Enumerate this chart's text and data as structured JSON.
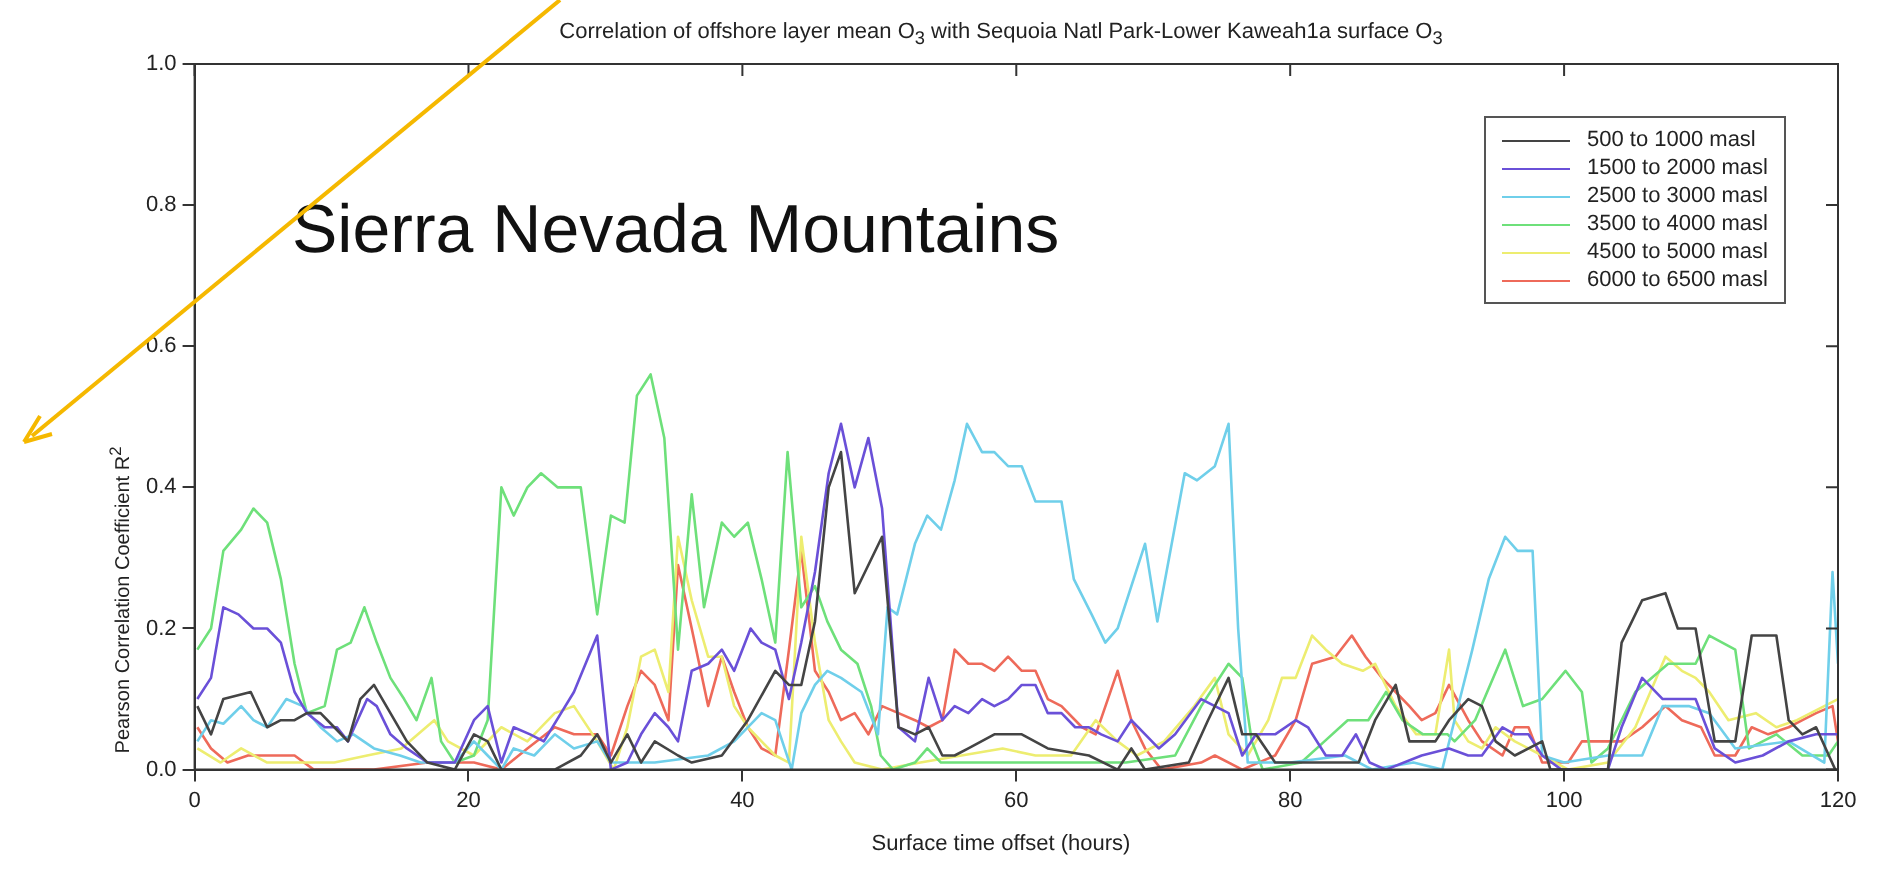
{
  "chart_data": {
    "type": "line",
    "title": "Correlation of offshore layer mean O$_{3}$ with Sequoia Natl Park-Lower Kaweah1a surface O$_{3}$",
    "xlabel": "Surface time offset (hours)",
    "ylabel": "Pearson Correlation Coefficient R$^{2}$",
    "annotations": [
      "Sierra Nevada Mountains"
    ],
    "xlim": [
      0,
      120
    ],
    "xticks": [
      0,
      20,
      40,
      60,
      80,
      100,
      120
    ],
    "ylim": [
      0,
      1
    ],
    "yticks": [
      {
        "value": 0,
        "label": "0.0"
      },
      {
        "value": 0.2,
        "label": "0.2"
      },
      {
        "value": 0.4,
        "label": "0.4"
      },
      {
        "value": 0.6,
        "label": "0.6"
      },
      {
        "value": 0.8,
        "label": "0.8"
      },
      {
        "value": 1,
        "label": "1.0"
      }
    ],
    "legend": "top right",
    "series": [
      {
        "name": "500 to 1000 masl",
        "color": "#444444",
        "x": [
          0.2,
          1.2,
          2.1,
          4.1,
          5.3,
          6.3,
          7.3,
          8.2,
          9.2,
          10.2,
          11.2,
          12.1,
          13.1,
          14.3,
          15.5,
          17,
          19,
          20.4,
          21.4,
          22.4,
          26.3,
          28.2,
          29.4,
          30.4,
          31.6,
          32.6,
          33.6,
          35.3,
          36.3,
          38.5,
          40.4,
          42.4,
          43.4,
          44.3,
          45.3,
          46.3,
          47.2,
          48.2,
          50.2,
          51.4,
          52.6,
          53.6,
          54.6,
          55.5,
          56.5,
          58.4,
          60.4,
          62.3,
          65.3,
          67.4,
          68.4,
          69.4,
          72.6,
          74,
          75.5,
          76.5,
          77.5,
          78.9,
          85,
          86.2,
          87.7,
          88.7,
          90.6,
          91.6,
          93,
          94,
          95,
          96.4,
          98.4,
          99,
          103.2,
          104.2,
          105.7,
          107.4,
          108.3,
          109.6,
          111,
          112.5,
          113.7,
          115.5,
          116.4,
          117.4,
          118.4,
          119.8
        ],
        "values": [
          0.09,
          0.05,
          0.1,
          0.11,
          0.06,
          0.07,
          0.07,
          0.08,
          0.08,
          0.06,
          0.04,
          0.1,
          0.12,
          0.08,
          0.04,
          0.01,
          0,
          0.05,
          0.04,
          0,
          0,
          0.02,
          0.05,
          0.01,
          0.05,
          0.01,
          0.04,
          0.02,
          0.01,
          0.02,
          0.07,
          0.14,
          0.12,
          0.12,
          0.21,
          0.4,
          0.45,
          0.25,
          0.33,
          0.06,
          0.05,
          0.06,
          0.02,
          0.02,
          0.03,
          0.05,
          0.05,
          0.03,
          0.02,
          0,
          0.03,
          0,
          0.01,
          0.07,
          0.13,
          0.05,
          0.05,
          0.01,
          0.01,
          0.07,
          0.12,
          0.04,
          0.04,
          0.07,
          0.1,
          0.09,
          0.04,
          0.02,
          0.04,
          0,
          0,
          0.18,
          0.24,
          0.25,
          0.2,
          0.2,
          0.04,
          0.04,
          0.19,
          0.19,
          0.07,
          0.05,
          0.06,
          0
        ]
      },
      {
        "name": "1500 to 2000 masl",
        "color": "#6a50d8",
        "x": [
          0.2,
          1.2,
          2.1,
          3.2,
          4.3,
          5.3,
          6.3,
          7.3,
          8.2,
          9.5,
          10.4,
          11.2,
          12.6,
          13.3,
          14.3,
          15.5,
          17,
          19,
          20.4,
          21.4,
          22.4,
          23.3,
          24.5,
          25.5,
          27.7,
          29.4,
          30.4,
          31.6,
          32.6,
          33.6,
          34.6,
          35.3,
          36.3,
          37.5,
          38.5,
          39.4,
          40.6,
          41.4,
          42.4,
          43.4,
          44.3,
          45.3,
          46.3,
          47.2,
          48.2,
          49.2,
          50.2,
          51.4,
          52.6,
          53.6,
          54.6,
          55.5,
          56.5,
          57.5,
          58.4,
          59.4,
          60.4,
          61.4,
          62.3,
          63.3,
          64.3,
          65.3,
          66.2,
          67.4,
          68.4,
          70.4,
          71.6,
          73.5,
          74.5,
          75.5,
          76.5,
          77.5,
          78.9,
          80.4,
          81.3,
          82.6,
          83.8,
          84.8,
          85.8,
          87,
          89.6,
          91.6,
          93,
          94,
          95.5,
          96.4,
          97.4,
          98.4,
          99.8,
          103.2,
          104.2,
          105.7,
          107.2,
          108.6,
          109.6,
          111,
          112.5,
          114.5,
          116.4,
          118.4,
          120
        ],
        "values": [
          0.1,
          0.13,
          0.23,
          0.22,
          0.2,
          0.2,
          0.18,
          0.11,
          0.08,
          0.06,
          0.06,
          0.04,
          0.1,
          0.09,
          0.05,
          0.03,
          0.01,
          0.01,
          0.07,
          0.09,
          0.01,
          0.06,
          0.05,
          0.04,
          0.11,
          0.19,
          0,
          0.01,
          0.05,
          0.08,
          0.06,
          0.04,
          0.14,
          0.15,
          0.17,
          0.14,
          0.2,
          0.18,
          0.17,
          0.1,
          0.18,
          0.28,
          0.42,
          0.49,
          0.4,
          0.47,
          0.37,
          0.06,
          0.04,
          0.13,
          0.07,
          0.09,
          0.08,
          0.1,
          0.09,
          0.1,
          0.12,
          0.12,
          0.08,
          0.08,
          0.06,
          0.06,
          0.05,
          0.04,
          0.07,
          0.03,
          0.05,
          0.1,
          0.09,
          0.08,
          0.02,
          0.05,
          0.05,
          0.07,
          0.06,
          0.02,
          0.02,
          0.05,
          0.01,
          0,
          0.02,
          0.03,
          0.02,
          0.02,
          0.06,
          0.05,
          0.05,
          0.02,
          0,
          0,
          0.06,
          0.13,
          0.1,
          0.1,
          0.1,
          0.03,
          0.01,
          0.02,
          0.04,
          0.05,
          0.05
        ]
      },
      {
        "name": "2500 to 3000 masl",
        "color": "#6fcfea",
        "x": [
          0.2,
          1.2,
          2.1,
          3.4,
          4.3,
          5.3,
          6.7,
          7.9,
          9.2,
          10.4,
          11.6,
          13.1,
          15,
          16.5,
          19,
          20.4,
          21.4,
          22.4,
          23.3,
          24.8,
          26.3,
          27.7,
          29.4,
          30.4,
          33.6,
          37.5,
          39.4,
          41.4,
          42.4,
          43.6,
          44.3,
          45.3,
          46.2,
          47.2,
          48.7,
          49.9,
          50.6,
          51.3,
          52.6,
          53.5,
          54.5,
          55.5,
          56.4,
          57.5,
          58.4,
          59.4,
          60.4,
          61.4,
          63.3,
          64.2,
          65.5,
          66.5,
          67.4,
          69.4,
          70.3,
          72.3,
          73.2,
          74.5,
          75.5,
          76.2,
          76.9,
          80,
          84,
          86,
          89,
          91.1,
          92,
          93.3,
          94.5,
          95.7,
          96.6,
          97.7,
          98.4,
          100,
          103.2,
          105.7,
          107.2,
          109.1,
          110.6,
          112.5,
          116.4,
          119,
          119.6,
          120
        ],
        "values": [
          0.04,
          0.07,
          0.065,
          0.09,
          0.07,
          0.06,
          0.1,
          0.09,
          0.06,
          0.04,
          0.05,
          0.03,
          0.02,
          0.01,
          0.01,
          0.04,
          0.02,
          0,
          0.03,
          0.02,
          0.05,
          0.03,
          0.04,
          0.01,
          0.01,
          0.02,
          0.04,
          0.08,
          0.07,
          0,
          0.08,
          0.12,
          0.14,
          0.13,
          0.11,
          0.05,
          0.23,
          0.22,
          0.32,
          0.36,
          0.34,
          0.41,
          0.49,
          0.45,
          0.45,
          0.43,
          0.43,
          0.38,
          0.38,
          0.27,
          0.22,
          0.18,
          0.2,
          0.32,
          0.21,
          0.42,
          0.41,
          0.43,
          0.49,
          0.2,
          0.01,
          0.01,
          0.02,
          0,
          0.01,
          0,
          0.07,
          0.17,
          0.27,
          0.33,
          0.31,
          0.31,
          0.02,
          0.01,
          0.02,
          0.02,
          0.09,
          0.09,
          0.08,
          0.03,
          0.04,
          0.01,
          0.28,
          0.15
        ]
      },
      {
        "name": "3500 to 4000 masl",
        "color": "#6ee07a",
        "x": [
          0.2,
          1.2,
          2.1,
          3.4,
          4.3,
          5.3,
          6.3,
          7.3,
          8.2,
          9.5,
          10.4,
          11.4,
          12.4,
          13.3,
          14.3,
          15.3,
          16.2,
          17.3,
          18,
          19,
          20.4,
          21.4,
          22.4,
          23.3,
          24.3,
          25.3,
          26.5,
          28.2,
          29.4,
          30.4,
          31.4,
          32.3,
          33.3,
          34.3,
          35.3,
          36.3,
          37.2,
          38.5,
          39.4,
          40.4,
          41.4,
          42.4,
          43.3,
          44.3,
          45.3,
          46.2,
          47.2,
          48.4,
          49.4,
          50.1,
          51,
          52.6,
          53.5,
          54.5,
          57,
          60,
          64,
          68,
          71.6,
          73.5,
          75.5,
          76.5,
          77.2,
          78,
          80.8,
          82.5,
          84.2,
          85.7,
          87,
          88.2,
          89.7,
          91.5,
          92,
          93.5,
          95.7,
          97,
          98.4,
          100.1,
          101.3,
          102,
          103.2,
          105.2,
          107.6,
          109.6,
          110.6,
          112.5,
          113.5,
          115.5,
          117.4,
          119.3,
          120
        ],
        "values": [
          0.17,
          0.2,
          0.31,
          0.34,
          0.37,
          0.35,
          0.27,
          0.15,
          0.08,
          0.09,
          0.17,
          0.18,
          0.23,
          0.18,
          0.13,
          0.1,
          0.07,
          0.13,
          0.04,
          0.01,
          0.02,
          0.07,
          0.4,
          0.36,
          0.4,
          0.42,
          0.4,
          0.4,
          0.22,
          0.36,
          0.35,
          0.53,
          0.56,
          0.47,
          0.17,
          0.39,
          0.23,
          0.35,
          0.33,
          0.35,
          0.27,
          0.18,
          0.45,
          0.23,
          0.26,
          0.21,
          0.17,
          0.15,
          0.09,
          0.02,
          0,
          0.01,
          0.03,
          0.01,
          0.01,
          0.01,
          0.01,
          0.01,
          0.02,
          0.09,
          0.15,
          0.13,
          0.04,
          0,
          0.01,
          0.04,
          0.07,
          0.07,
          0.11,
          0.07,
          0.05,
          0.05,
          0.04,
          0.07,
          0.17,
          0.09,
          0.1,
          0.14,
          0.11,
          0.01,
          0.03,
          0.11,
          0.15,
          0.15,
          0.19,
          0.17,
          0.03,
          0.05,
          0.02,
          0.02,
          0.04
        ]
      },
      {
        "name": "4500 to 5000 masl",
        "color": "#eded70",
        "x": [
          0.2,
          1.9,
          3.4,
          5.3,
          7.3,
          10.2,
          12.6,
          15.1,
          17.5,
          18.5,
          20.4,
          22.4,
          24.3,
          26.3,
          27.7,
          29.4,
          30.6,
          31.6,
          32.6,
          33.6,
          34.6,
          35.3,
          36.3,
          37.5,
          38.5,
          39.4,
          40.4,
          41.4,
          42.4,
          43.4,
          44.3,
          45.3,
          46.3,
          47.2,
          48.2,
          50.2,
          53,
          56,
          59,
          61.4,
          64,
          65.8,
          67.4,
          68.8,
          70.8,
          73,
          74.5,
          75.5,
          76.9,
          78.4,
          79.4,
          80.4,
          81.6,
          82.6,
          83.8,
          85.3,
          86.2,
          87.7,
          89.2,
          90.6,
          91.6,
          92,
          93,
          94,
          95,
          96.4,
          98.4,
          100.3,
          103.2,
          105.2,
          107.4,
          108.6,
          109.6,
          110.6,
          112,
          114,
          115.5,
          117,
          119,
          120
        ],
        "values": [
          0.03,
          0.01,
          0.03,
          0.01,
          0.01,
          0.01,
          0.02,
          0.03,
          0.07,
          0.04,
          0.02,
          0.06,
          0.04,
          0.08,
          0.09,
          0.04,
          0,
          0.06,
          0.16,
          0.17,
          0.11,
          0.33,
          0.24,
          0.16,
          0.16,
          0.09,
          0.06,
          0.04,
          0.02,
          0.01,
          0.33,
          0.18,
          0.07,
          0.04,
          0.01,
          0,
          0.01,
          0.02,
          0.03,
          0.02,
          0.02,
          0.07,
          0.04,
          0.02,
          0.04,
          0.09,
          0.13,
          0.05,
          0.02,
          0.07,
          0.13,
          0.13,
          0.19,
          0.17,
          0.15,
          0.14,
          0.15,
          0.09,
          0.05,
          0.05,
          0.17,
          0.07,
          0.04,
          0.03,
          0.06,
          0.04,
          0.02,
          0,
          0.01,
          0.06,
          0.16,
          0.14,
          0.13,
          0.11,
          0.07,
          0.08,
          0.06,
          0.07,
          0.09,
          0.1
        ]
      },
      {
        "name": "6000 to 6500 masl",
        "color": "#ee6a5a",
        "x": [
          0.2,
          1.2,
          2.4,
          3.9,
          5.8,
          7.3,
          8.7,
          13.1,
          17,
          18.5,
          20.4,
          22.4,
          24.3,
          26.3,
          27.7,
          29.4,
          30.4,
          31.6,
          32.6,
          33.6,
          34.6,
          35.3,
          36.3,
          37.5,
          38.5,
          39.4,
          40.4,
          41.4,
          42.4,
          43.4,
          44.3,
          45.3,
          46.3,
          47.2,
          48.2,
          49.2,
          50.2,
          51.4,
          52.6,
          53.6,
          54.6,
          55.5,
          56.5,
          57.5,
          58.4,
          59.4,
          60.4,
          61.4,
          62.3,
          63.3,
          64.8,
          65.8,
          67.4,
          68.4,
          69.4,
          70.6,
          73.5,
          74.5,
          76.5,
          78.9,
          80.4,
          81.6,
          83.3,
          84.5,
          85.5,
          86.7,
          87.7,
          88.7,
          89.6,
          90.6,
          91.6,
          93,
          94,
          95.5,
          96.4,
          97.4,
          98.4,
          100.3,
          101.3,
          102.8,
          104.2,
          105.7,
          107.4,
          108.6,
          110,
          111,
          112.5,
          113.7,
          114.9,
          116.4,
          117.4,
          118.4,
          119.6,
          120
        ],
        "values": [
          0.06,
          0.03,
          0.01,
          0.02,
          0.02,
          0.02,
          0,
          0,
          0.01,
          0.01,
          0.01,
          0,
          0.03,
          0.06,
          0.05,
          0.05,
          0.02,
          0.09,
          0.14,
          0.12,
          0.07,
          0.29,
          0.2,
          0.09,
          0.16,
          0.11,
          0.06,
          0.03,
          0.02,
          0.17,
          0.31,
          0.14,
          0.11,
          0.07,
          0.08,
          0.05,
          0.09,
          0.08,
          0.07,
          0.06,
          0.07,
          0.17,
          0.15,
          0.15,
          0.14,
          0.16,
          0.14,
          0.14,
          0.1,
          0.09,
          0.06,
          0.05,
          0.14,
          0.07,
          0.03,
          0,
          0.01,
          0.02,
          0,
          0.02,
          0.07,
          0.15,
          0.16,
          0.19,
          0.16,
          0.13,
          0.11,
          0.09,
          0.07,
          0.08,
          0.12,
          0.07,
          0.04,
          0.02,
          0.06,
          0.06,
          0.01,
          0.01,
          0.04,
          0.04,
          0.04,
          0.06,
          0.09,
          0.07,
          0.06,
          0.02,
          0.02,
          0.06,
          0.05,
          0.06,
          0.07,
          0.08,
          0.09,
          0.04
        ]
      }
    ]
  }
}
